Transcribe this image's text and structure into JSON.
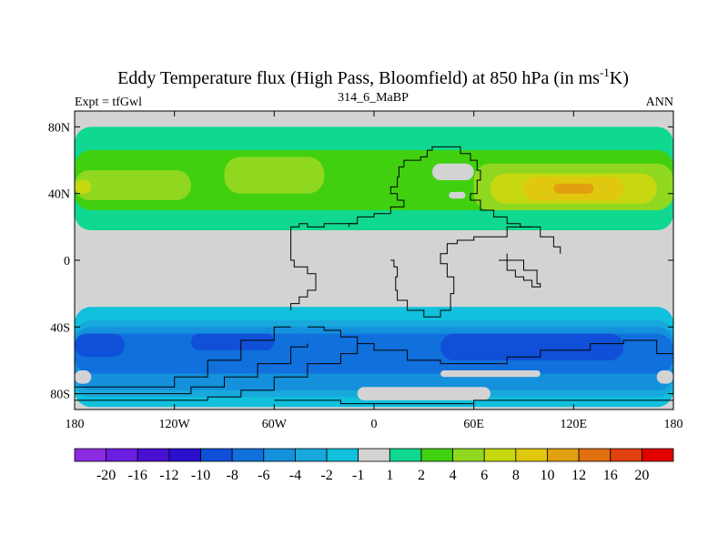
{
  "map": {
    "title_main": "Eddy Temperature flux (High Pass, Bloomfield) at 850 hPa (in ms",
    "title_sup": "-1",
    "title_end": "K)",
    "left_label": "Expt = tfGwl",
    "center_label": "314_6_MaBP",
    "right_label": "ANN",
    "lat_ticks": [
      "80N",
      "40N",
      "0",
      "40S",
      "80S"
    ],
    "lon_ticks": [
      "180",
      "120W",
      "60W",
      "0",
      "60E",
      "120E",
      "180"
    ],
    "missing_color": "#d3d3d3"
  },
  "colorbar": {
    "labels": [
      "-20",
      "-16",
      "-12",
      "-10",
      "-8",
      "-6",
      "-4",
      "-2",
      "-1",
      "1",
      "2",
      "4",
      "6",
      "8",
      "10",
      "12",
      "16",
      "20"
    ],
    "colors": [
      "#8a2be2",
      "#6a1ee0",
      "#4a10d0",
      "#2a10cc",
      "#1050d8",
      "#1070dc",
      "#1490dc",
      "#18a8dc",
      "#10c0dc",
      "#d3d3d3",
      "#10d890",
      "#40d010",
      "#90d820",
      "#c8d810",
      "#e0c810",
      "#e0a010",
      "#e07010",
      "#e04010",
      "#e00000"
    ]
  },
  "fields": {
    "nh": [
      {
        "id": "nh-2",
        "color": "#10d890",
        "lon": [
          -180,
          180
        ],
        "lat": [
          18,
          80
        ]
      },
      {
        "id": "nh-4a",
        "color": "#40d010",
        "lon": [
          -180,
          180
        ],
        "lat": [
          30,
          66
        ]
      },
      {
        "id": "nh-6a",
        "color": "#90d820",
        "lon": [
          -180,
          -110
        ],
        "lat": [
          36,
          54
        ]
      },
      {
        "id": "nh-6b",
        "color": "#90d820",
        "lon": [
          -90,
          -30
        ],
        "lat": [
          40,
          62
        ]
      },
      {
        "id": "nh-6c",
        "color": "#90d820",
        "lon": [
          60,
          180
        ],
        "lat": [
          30,
          58
        ]
      },
      {
        "id": "nh-8a",
        "color": "#c8d810",
        "lon": [
          -180,
          -170
        ],
        "lat": [
          40,
          48
        ]
      },
      {
        "id": "nh-8b",
        "color": "#c8d810",
        "lon": [
          70,
          170
        ],
        "lat": [
          34,
          52
        ]
      },
      {
        "id": "nh-10",
        "color": "#e0c810",
        "lon": [
          90,
          150
        ],
        "lat": [
          36,
          50
        ]
      },
      {
        "id": "nh-12",
        "color": "#e0a010",
        "lon": [
          108,
          132
        ],
        "lat": [
          40,
          46
        ]
      }
    ],
    "nh_holes": [
      {
        "id": "nh-hole-1",
        "lon": [
          35,
          60
        ],
        "lat": [
          48,
          58
        ]
      },
      {
        "id": "nh-hole-2",
        "lon": [
          45,
          55
        ],
        "lat": [
          37,
          41
        ]
      }
    ],
    "sh": [
      {
        "id": "sh-m2",
        "color": "#10c0dc",
        "lon": [
          -180,
          180
        ],
        "lat": [
          -88,
          -28
        ]
      },
      {
        "id": "sh-m2b",
        "color": "#18a8dc",
        "lon": [
          -180,
          180
        ],
        "lat": [
          -82,
          -36
        ]
      },
      {
        "id": "sh-m4",
        "color": "#1490dc",
        "lon": [
          -180,
          180
        ],
        "lat": [
          -78,
          -40
        ]
      },
      {
        "id": "sh-m6",
        "color": "#1070dc",
        "lon": [
          -180,
          180
        ],
        "lat": [
          -68,
          -44
        ]
      },
      {
        "id": "sh-m8a",
        "color": "#1050d8",
        "lon": [
          -180,
          -150
        ],
        "lat": [
          -58,
          -44
        ]
      },
      {
        "id": "sh-m8b",
        "color": "#1050d8",
        "lon": [
          -110,
          -60
        ],
        "lat": [
          -54,
          -44
        ]
      },
      {
        "id": "sh-m8c",
        "color": "#1050d8",
        "lon": [
          40,
          150
        ],
        "lat": [
          -60,
          -44
        ]
      }
    ],
    "sh_holes": [
      {
        "id": "sh-hole-1",
        "lon": [
          -10,
          70
        ],
        "lat": [
          -84,
          -76
        ]
      },
      {
        "id": "sh-hole-2",
        "lon": [
          40,
          100
        ],
        "lat": [
          -70,
          -66
        ]
      },
      {
        "id": "sh-hole-3",
        "lon": [
          -180,
          -170
        ],
        "lat": [
          -74,
          -66
        ]
      },
      {
        "id": "sh-hole-4",
        "lon": [
          170,
          180
        ],
        "lat": [
          -74,
          -66
        ]
      }
    ]
  },
  "coastlines": [
    {
      "id": "coast-eurasia-north",
      "points": [
        [
          22,
          60
        ],
        [
          28,
          62
        ],
        [
          32,
          66
        ],
        [
          35,
          68
        ],
        [
          48,
          68
        ],
        [
          52,
          64
        ],
        [
          58,
          60
        ],
        [
          62,
          54
        ],
        [
          64,
          48
        ],
        [
          62,
          40
        ],
        [
          58,
          36
        ],
        [
          64,
          30
        ],
        [
          72,
          26
        ],
        [
          80,
          22
        ],
        [
          88,
          20
        ],
        [
          95,
          20
        ],
        [
          100,
          14
        ],
        [
          108,
          8
        ],
        [
          112,
          4
        ]
      ]
    },
    {
      "id": "coast-europe-west",
      "points": [
        [
          22,
          60
        ],
        [
          18,
          56
        ],
        [
          15,
          50
        ],
        [
          14,
          44
        ],
        [
          10,
          40
        ],
        [
          14,
          36
        ],
        [
          18,
          32
        ],
        [
          10,
          28
        ],
        [
          0,
          26
        ],
        [
          -10,
          22
        ],
        [
          -15,
          20
        ]
      ]
    },
    {
      "id": "coast-americas",
      "points": [
        [
          -10,
          22
        ],
        [
          -20,
          22
        ],
        [
          -30,
          20
        ],
        [
          -40,
          22
        ],
        [
          -45,
          20
        ],
        [
          -50,
          12
        ],
        [
          -50,
          0
        ],
        [
          -48,
          -4
        ],
        [
          -40,
          -8
        ],
        [
          -35,
          -12
        ],
        [
          -35,
          -18
        ],
        [
          -40,
          -22
        ],
        [
          -45,
          -26
        ],
        [
          -50,
          -30
        ]
      ]
    },
    {
      "id": "coast-africa",
      "points": [
        [
          10,
          0
        ],
        [
          12,
          -4
        ],
        [
          14,
          -10
        ],
        [
          13,
          -18
        ],
        [
          14,
          -24
        ],
        [
          20,
          -30
        ],
        [
          30,
          -34
        ],
        [
          40,
          -30
        ],
        [
          46,
          -20
        ],
        [
          48,
          -10
        ],
        [
          44,
          -2
        ],
        [
          40,
          4
        ],
        [
          44,
          10
        ],
        [
          50,
          12
        ],
        [
          60,
          14
        ],
        [
          80,
          20
        ],
        [
          95,
          20
        ]
      ]
    },
    {
      "id": "coast-antarctic-ridge-1",
      "points": [
        [
          -180,
          -76
        ],
        [
          -150,
          -76
        ],
        [
          -120,
          -70
        ],
        [
          -100,
          -60
        ],
        [
          -80,
          -48
        ],
        [
          -60,
          -40
        ],
        [
          -50,
          -40
        ]
      ]
    },
    {
      "id": "coast-antarctic-ridge-2",
      "points": [
        [
          -180,
          -80
        ],
        [
          -140,
          -80
        ],
        [
          -110,
          -76
        ],
        [
          -90,
          -70
        ],
        [
          -70,
          -62
        ],
        [
          -50,
          -52
        ],
        [
          -40,
          -50
        ]
      ]
    },
    {
      "id": "coast-antarctic-ridge-3",
      "points": [
        [
          -180,
          -84
        ],
        [
          -130,
          -84
        ],
        [
          -100,
          -82
        ],
        [
          -80,
          -78
        ],
        [
          -60,
          -70
        ],
        [
          -40,
          -62
        ],
        [
          -20,
          -56
        ],
        [
          -10,
          -50
        ]
      ]
    },
    {
      "id": "coast-south-main",
      "points": [
        [
          -40,
          -40
        ],
        [
          -30,
          -42
        ],
        [
          -20,
          -46
        ],
        [
          -10,
          -50
        ],
        [
          0,
          -54
        ],
        [
          20,
          -60
        ],
        [
          40,
          -62
        ],
        [
          60,
          -62
        ],
        [
          80,
          -58
        ],
        [
          100,
          -54
        ],
        [
          130,
          -50
        ],
        [
          150,
          -48
        ],
        [
          170,
          -56
        ],
        [
          180,
          -64
        ]
      ]
    },
    {
      "id": "coast-south-low",
      "points": [
        [
          -60,
          -84
        ],
        [
          -20,
          -86
        ],
        [
          20,
          -86
        ],
        [
          60,
          -84
        ],
        [
          100,
          -84
        ],
        [
          140,
          -84
        ],
        [
          180,
          -84
        ]
      ]
    },
    {
      "id": "coast-australia",
      "points": [
        [
          75,
          0
        ],
        [
          80,
          -6
        ],
        [
          85,
          -10
        ],
        [
          90,
          -12
        ],
        [
          95,
          -16
        ],
        [
          100,
          -14
        ],
        [
          98,
          -6
        ],
        [
          90,
          0
        ],
        [
          80,
          4
        ]
      ]
    }
  ]
}
